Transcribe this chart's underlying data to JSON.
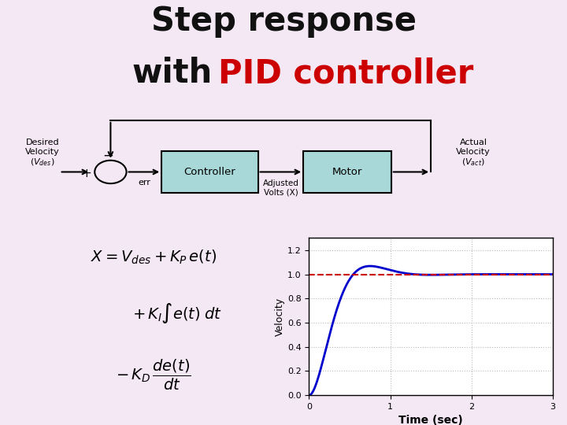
{
  "background_color": "#f5e8f5",
  "title_fontsize": 30,
  "title_color_black": "#111111",
  "title_color_red": "#cc0000",
  "block_fill_color": "#a8d8d8",
  "block_edge_color": "#000000",
  "graph_bg": "#ffffff",
  "grid_color": "#bbbbbb",
  "plot_line_blue": "#0000cc",
  "plot_line_red": "#cc0000",
  "ylim": [
    0,
    1.3
  ],
  "xlim": [
    0,
    3
  ],
  "yticks": [
    0,
    0.2,
    0.4,
    0.6,
    0.8,
    1.0,
    1.2
  ],
  "xticks": [
    0,
    1,
    2,
    3
  ],
  "xlabel": "Time (sec)",
  "ylabel": "Velocity",
  "zeta": 0.65,
  "omega_n": 5.5
}
